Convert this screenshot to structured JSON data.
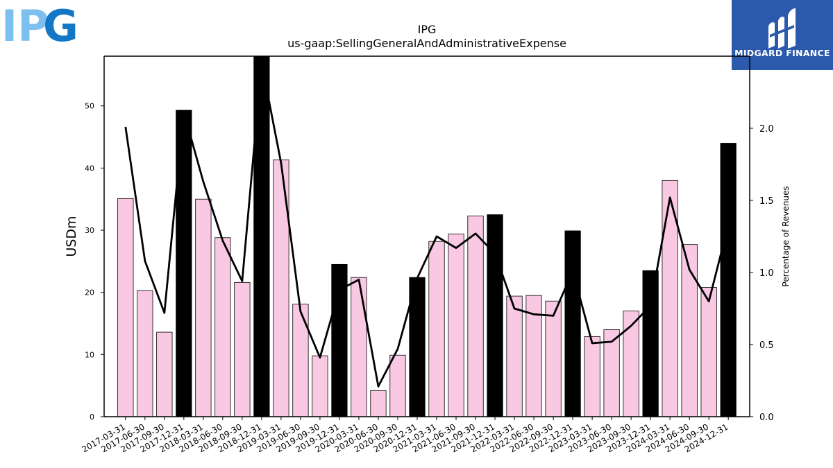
{
  "logo_left": {
    "text_light": "IP",
    "text_dark": "G",
    "color_light": "#7dbfef",
    "color_dark": "#1476c6"
  },
  "logo_right": {
    "text": "MIDGARD FINANCE",
    "bg": "#2b5aad"
  },
  "chart_data": {
    "type": "bar",
    "title": "IPG",
    "subtitle": "us-gaap:SellingGeneralAndAdministrativeExpense",
    "ylabel": "USDm",
    "ylabel_right": "Percentage of Revenues",
    "ylim": [
      0,
      58
    ],
    "ylim_right": [
      0,
      2.5
    ],
    "yticks": [
      0,
      10,
      20,
      30,
      40,
      50
    ],
    "yticks_right": [
      "0.0",
      "0.5",
      "1.0",
      "1.5",
      "2.0"
    ],
    "categories": [
      "2017-03-31",
      "2017-06-30",
      "2017-09-30",
      "2017-12-31",
      "2018-03-31",
      "2018-06-30",
      "2018-09-30",
      "2018-12-31",
      "2019-03-31",
      "2019-06-30",
      "2019-09-30",
      "2019-12-31",
      "2020-03-31",
      "2020-06-30",
      "2020-09-30",
      "2020-12-31",
      "2021-03-31",
      "2021-06-30",
      "2021-09-30",
      "2021-12-31",
      "2022-03-31",
      "2022-06-30",
      "2022-09-30",
      "2022-12-31",
      "2023-03-31",
      "2023-06-30",
      "2023-09-30",
      "2023-12-31",
      "2024-03-31",
      "2024-06-30",
      "2024-09-30",
      "2024-12-31"
    ],
    "series": [
      {
        "type": "bar",
        "values": [
          35.1,
          20.3,
          13.6,
          49.3,
          35.0,
          28.8,
          21.6,
          59.5,
          41.3,
          18.1,
          9.8,
          24.5,
          22.4,
          4.2,
          9.9,
          22.4,
          28.2,
          29.4,
          32.3,
          32.5,
          19.4,
          19.5,
          18.6,
          29.9,
          12.9,
          14.0,
          17.0,
          23.5,
          38.0,
          27.7,
          20.8,
          44.0
        ],
        "highlight": [
          false,
          false,
          false,
          true,
          false,
          false,
          false,
          true,
          false,
          false,
          false,
          true,
          false,
          false,
          false,
          true,
          false,
          false,
          false,
          true,
          false,
          false,
          false,
          true,
          false,
          false,
          false,
          true,
          false,
          false,
          false,
          true
        ],
        "color": "#f9c9e3",
        "highlight_color": "#000000"
      },
      {
        "type": "line",
        "axis": "right",
        "values": [
          2.01,
          1.08,
          0.72,
          2.11,
          1.63,
          1.22,
          0.94,
          2.45,
          1.76,
          0.73,
          0.41,
          0.88,
          0.95,
          0.21,
          0.47,
          0.96,
          1.25,
          1.17,
          1.27,
          1.13,
          0.75,
          0.71,
          0.7,
          1.01,
          0.51,
          0.52,
          0.63,
          0.77,
          1.52,
          1.02,
          0.8,
          1.33
        ],
        "color": "#000000"
      }
    ]
  }
}
